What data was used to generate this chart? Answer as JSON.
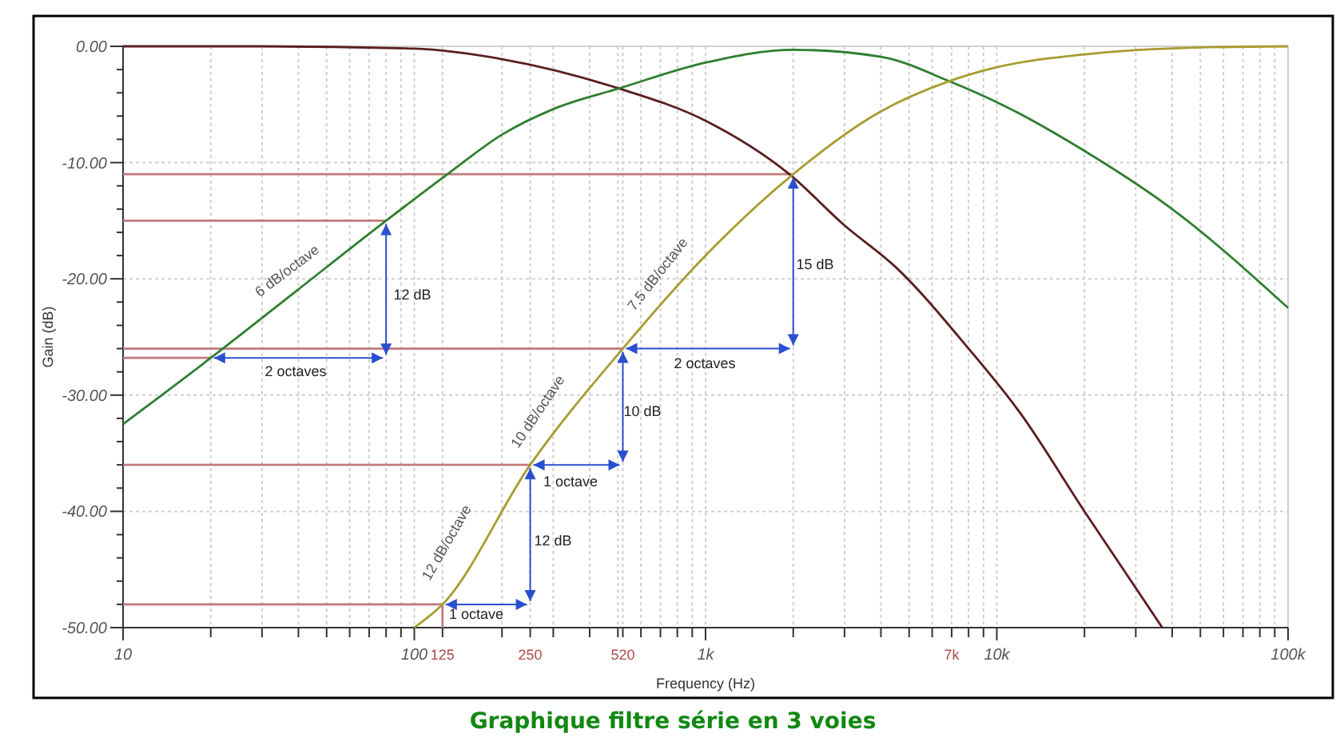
{
  "chart_data": {
    "type": "line",
    "title": "Graphique filtre série en 3 voies",
    "xlabel": "Frequency (Hz)",
    "ylabel": "Gain (dB)",
    "log": "x",
    "grid": true,
    "xlim": [
      10,
      100000
    ],
    "ylim": [
      -50,
      0
    ],
    "xticks": [
      {
        "value": 10,
        "label": "10"
      },
      {
        "value": 20,
        "label": null
      },
      {
        "value": 30,
        "label": null
      },
      {
        "value": 40,
        "label": null
      },
      {
        "value": 50,
        "label": null
      },
      {
        "value": 60,
        "label": null
      },
      {
        "value": 70,
        "label": null
      },
      {
        "value": 80,
        "label": null
      },
      {
        "value": 90,
        "label": null
      },
      {
        "value": 100,
        "label": "100"
      },
      125,
      {
        "value": 200,
        "label": null
      },
      250,
      {
        "value": 300,
        "label": null
      },
      {
        "value": 400,
        "label": null
      },
      {
        "value": 500,
        "label": null
      },
      520,
      {
        "value": 600,
        "label": null
      },
      {
        "value": 700,
        "label": null
      },
      {
        "value": 800,
        "label": null
      },
      {
        "value": 900,
        "label": null
      },
      {
        "value": 1000,
        "label": "1k"
      },
      {
        "value": 2000,
        "label": null
      },
      {
        "value": 3000,
        "label": null
      },
      {
        "value": 4000,
        "label": null
      },
      {
        "value": 5000,
        "label": null
      },
      {
        "value": 6000,
        "label": null
      },
      {
        "value": 7000,
        "label": "7k"
      },
      {
        "value": 8000,
        "label": null
      },
      {
        "value": 9000,
        "label": null
      },
      {
        "value": 10000,
        "label": "10k"
      },
      {
        "value": 20000,
        "label": null
      },
      {
        "value": 30000,
        "label": null
      },
      {
        "value": 40000,
        "label": null
      },
      {
        "value": 50000,
        "label": null
      },
      {
        "value": 60000,
        "label": null
      },
      {
        "value": 70000,
        "label": null
      },
      {
        "value": 80000,
        "label": null
      },
      {
        "value": 90000,
        "label": null
      },
      {
        "value": 100000,
        "label": "100k"
      }
    ],
    "yticks": [
      {
        "value": 0,
        "label": "0.00"
      },
      {
        "value": -2,
        "label": null
      },
      {
        "value": -4,
        "label": null
      },
      {
        "value": -6,
        "label": null
      },
      {
        "value": -8,
        "label": null
      },
      {
        "value": -10,
        "label": "-10.00"
      },
      {
        "value": -12,
        "label": null
      },
      {
        "value": -14,
        "label": null
      },
      {
        "value": -16,
        "label": null
      },
      {
        "value": -18,
        "label": null
      },
      {
        "value": -20,
        "label": "-20.00"
      },
      {
        "value": -22,
        "label": null
      },
      {
        "value": -24,
        "label": null
      },
      {
        "value": -26,
        "label": null
      },
      {
        "value": -28,
        "label": null
      },
      {
        "value": -30,
        "label": "-30.00"
      },
      {
        "value": -32,
        "label": null
      },
      {
        "value": -34,
        "label": null
      },
      {
        "value": -36,
        "label": null
      },
      {
        "value": -38,
        "label": null
      },
      {
        "value": -40,
        "label": "-40.00"
      },
      {
        "value": -42,
        "label": null
      },
      {
        "value": -44,
        "label": null
      },
      {
        "value": -46,
        "label": null
      },
      {
        "value": -48,
        "label": null
      },
      {
        "value": -50,
        "label": "-50.00"
      }
    ],
    "series": [
      {
        "color": "#c07a7a",
        "x": [
          10,
          2000
        ],
        "values": [
          -11,
          -11
        ]
      },
      {
        "color": "#c07a7a",
        "x": [
          10,
          80
        ],
        "values": [
          -15,
          -15
        ]
      },
      {
        "color": "#c07a7a",
        "x": [
          10,
          520
        ],
        "values": [
          -26,
          -26
        ]
      },
      {
        "color": "#c07a7a",
        "x": [
          10,
          20
        ],
        "values": [
          -26.8,
          -26.8
        ]
      },
      {
        "color": "#c07a7a",
        "x": [
          10,
          250
        ],
        "values": [
          -36,
          -36
        ]
      },
      {
        "color": "#c07a7a",
        "x": [
          10,
          125
        ],
        "values": [
          -48,
          -48
        ]
      },
      {
        "color": "#c07a7a",
        "x": [
          125,
          125
        ],
        "values": [
          -48,
          -50
        ]
      },
      {
        "color": "#5a1f1f",
        "x": [
          10,
          30,
          100,
          200,
          500,
          1000,
          1940,
          3000,
          4500,
          8000,
          12000,
          20000,
          37000
        ],
        "values": [
          0,
          0,
          -0.2,
          -1.1,
          -3.6,
          -6.4,
          -11,
          -15.4,
          -19,
          -26,
          -31.5,
          -40,
          -50
        ]
      },
      {
        "color": "#2f7f2f",
        "x": [
          10,
          20,
          40,
          80,
          130,
          200,
          300,
          508,
          1000,
          2000,
          4000,
          6870,
          10000,
          20000,
          40000,
          100000
        ],
        "values": [
          -32.5,
          -26.8,
          -20.9,
          -15,
          -11,
          -7.6,
          -5.4,
          -3.6,
          -1.4,
          -0.3,
          -0.9,
          -3,
          -4.8,
          -9,
          -14,
          -22.5
        ]
      },
      {
        "color": "#a89c30",
        "x": [
          100,
          125,
          250,
          520,
          1000,
          2000,
          4000,
          6870,
          10000,
          20000,
          50000,
          100000
        ],
        "values": [
          -50,
          -48,
          -36,
          -26,
          -18,
          -11,
          -5.6,
          -3,
          -1.8,
          -0.7,
          -0.1,
          0
        ]
      }
    ],
    "annotations": [
      "6 dB/octave",
      "12 dB/octave",
      "10 dB/octave",
      "7.5 dB/octave",
      "2 octaves",
      "12 dB",
      "1 octave",
      "12 dB",
      "1 octave",
      "10 dB",
      "2 octaves",
      "15 dB"
    ]
  }
}
